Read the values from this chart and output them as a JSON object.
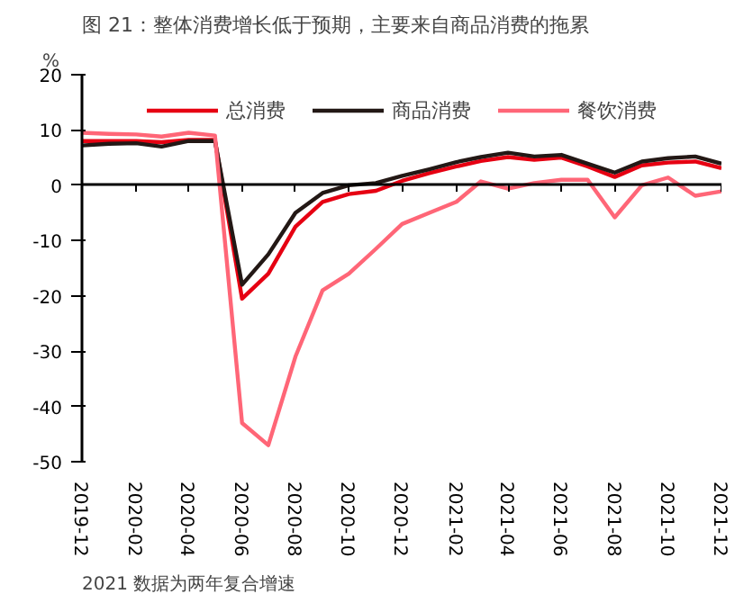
{
  "chart_data": {
    "type": "line",
    "title": "图 21：整体消费增长低于预期，主要来自商品消费的拖累",
    "ylabel": "%",
    "annotations": [
      "2021 数据为两年复合增速"
    ],
    "x": [
      "2019-12",
      "2020-01",
      "2020-02",
      "2020-03",
      "2020-04",
      "2020-05",
      "2020-06",
      "2020-07",
      "2020-08",
      "2020-09",
      "2020-10",
      "2020-11",
      "2020-12",
      "2021-01",
      "2021-02",
      "2021-03",
      "2021-04",
      "2021-05",
      "2021-06",
      "2021-07",
      "2021-08",
      "2021-09",
      "2021-10",
      "2021-11",
      "2021-12"
    ],
    "series": [
      {
        "name": "总消费",
        "color": "#e60012",
        "values": [
          8,
          8,
          8,
          7.8,
          8.2,
          8.2,
          -20.5,
          -16,
          -7.5,
          -3,
          -1.6,
          -1,
          0.8,
          2.2,
          3.4,
          4.4,
          5.1,
          4.6,
          5,
          3.4,
          1.5,
          3.6,
          4.1,
          4.3,
          3.1
        ]
      },
      {
        "name": "商品消费",
        "color": "#231815",
        "values": [
          7.2,
          7.5,
          7.6,
          7,
          8,
          8,
          -18,
          -12.5,
          -5,
          -1.4,
          0,
          0.4,
          1.7,
          2.9,
          4.2,
          5.1,
          5.9,
          5.2,
          5.5,
          3.9,
          2.3,
          4.3,
          4.9,
          5.2,
          3.9
        ]
      },
      {
        "name": "餐饮消费",
        "color": "#ff6677",
        "values": [
          9.5,
          9.3,
          9.2,
          8.8,
          9.5,
          9,
          -43,
          -47,
          -31,
          -19,
          -16,
          -11.5,
          -7,
          -5,
          -3,
          0.7,
          -0.6,
          0.4,
          1,
          1,
          -5.8,
          0,
          1.4,
          -1.9,
          -1.1
        ]
      }
    ],
    "xlim": [
      "2019-12",
      "2021-12"
    ],
    "xticks": [
      "2019-12",
      "2020-02",
      "2020-04",
      "2020-06",
      "2020-08",
      "2020-10",
      "2020-12",
      "2021-02",
      "2021-04",
      "2021-06",
      "2021-08",
      "2021-10",
      "2021-12"
    ],
    "ylim": [
      -50,
      20
    ],
    "yticks": [
      -50,
      -40,
      -30,
      -20,
      -10,
      0,
      10,
      20
    ],
    "ref_lines": [
      {
        "axis": "y",
        "value": 0,
        "color": "#000000"
      }
    ],
    "grid": false,
    "legend": "top",
    "marker": "none",
    "line_style": "solid"
  }
}
